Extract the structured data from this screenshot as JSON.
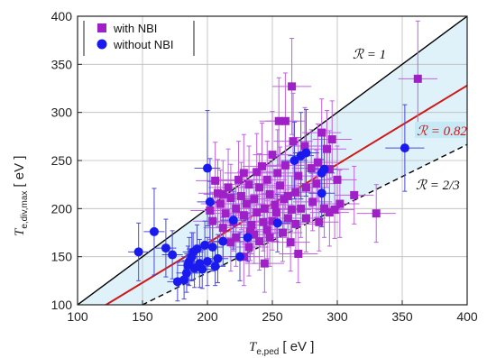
{
  "chart_data": {
    "type": "scatter",
    "xlabel": "T",
    "xlabel_sub": "e,ped",
    "xlabel_unit": "[ eV ]",
    "ylabel": "T",
    "ylabel_sub": "e,div,max",
    "ylabel_unit": "[ eV ]",
    "xlim": [
      100,
      400
    ],
    "ylim": [
      100,
      400
    ],
    "xticks": [
      100,
      150,
      200,
      250,
      300,
      350,
      400
    ],
    "yticks": [
      100,
      150,
      200,
      250,
      300,
      350,
      400
    ],
    "grid": true,
    "legend_position": "top-left",
    "colors": {
      "nbi": "#a020c8",
      "nonbi": "#1a1aee",
      "band": "#dff2fa",
      "ratio1": "#000000",
      "ratio082": "#d01818",
      "ratio23": "#000000",
      "nbi_err": "#c060e0",
      "nonbi_err": "#4a4ad8"
    },
    "lines": [
      {
        "label": "ℛ = 1",
        "slope": 1.0,
        "color": "ratio1",
        "style": "solid"
      },
      {
        "label": "ℛ = 0.82",
        "slope": 1.2195,
        "color": "ratio082",
        "style": "solid"
      },
      {
        "label": "ℛ = 2/3",
        "slope": 1.5,
        "color": "ratio23",
        "style": "dashed"
      }
    ],
    "series": [
      {
        "name": "with NBI",
        "marker": "square",
        "color": "nbi",
        "points": [
          [
            362,
            335,
            15,
            60
          ],
          [
            265,
            327,
            15,
            50
          ],
          [
            255,
            291,
            15,
            45
          ],
          [
            260,
            291,
            15,
            50
          ],
          [
            266,
            270,
            15,
            50
          ],
          [
            275,
            265,
            15,
            40
          ],
          [
            288,
            279,
            15,
            35
          ],
          [
            292,
            262,
            15,
            40
          ],
          [
            296,
            272,
            15,
            40
          ],
          [
            294,
            241,
            15,
            40
          ],
          [
            300,
            230,
            15,
            35
          ],
          [
            313,
            214,
            15,
            30
          ],
          [
            330,
            195,
            15,
            30
          ],
          [
            298,
            199,
            15,
            30
          ],
          [
            290,
            200,
            15,
            30
          ],
          [
            284,
            226,
            15,
            35
          ],
          [
            281,
            207,
            15,
            30
          ],
          [
            270,
            234,
            15,
            40
          ],
          [
            268,
            217,
            15,
            35
          ],
          [
            265,
            199,
            15,
            35
          ],
          [
            262,
            190,
            15,
            30
          ],
          [
            259,
            210,
            15,
            35
          ],
          [
            256,
            224,
            15,
            40
          ],
          [
            254,
            237,
            15,
            45
          ],
          [
            252,
            204,
            15,
            30
          ],
          [
            250,
            187,
            15,
            30
          ],
          [
            248,
            215,
            15,
            35
          ],
          [
            246,
            230,
            15,
            40
          ],
          [
            244,
            200,
            15,
            30
          ],
          [
            242,
            244,
            15,
            45
          ],
          [
            240,
            222,
            15,
            35
          ],
          [
            238,
            196,
            15,
            30
          ],
          [
            236,
            210,
            15,
            30
          ],
          [
            234,
            183,
            15,
            30
          ],
          [
            232,
            225,
            15,
            40
          ],
          [
            230,
            205,
            15,
            35
          ],
          [
            228,
            193,
            15,
            30
          ],
          [
            226,
            213,
            15,
            35
          ],
          [
            224,
            230,
            15,
            40
          ],
          [
            222,
            200,
            15,
            30
          ],
          [
            220,
            186,
            15,
            30
          ],
          [
            218,
            211,
            15,
            35
          ],
          [
            216,
            222,
            15,
            40
          ],
          [
            214,
            195,
            15,
            30
          ],
          [
            212,
            180,
            15,
            30
          ],
          [
            210,
            205,
            15,
            35
          ],
          [
            208,
            216,
            15,
            35
          ],
          [
            206,
            229,
            15,
            40
          ],
          [
            204,
            187,
            15,
            30
          ],
          [
            202,
            198,
            15,
            30
          ],
          [
            248,
            170,
            15,
            30
          ],
          [
            258,
            175,
            15,
            30
          ],
          [
            268,
            184,
            15,
            30
          ],
          [
            240,
            166,
            15,
            30
          ],
          [
            232,
            160,
            15,
            30
          ],
          [
            246,
            178,
            15,
            30
          ],
          [
            236,
            173,
            15,
            30
          ],
          [
            222,
            170,
            15,
            30
          ],
          [
            218,
            165,
            15,
            30
          ],
          [
            264,
            165,
            15,
            30
          ],
          [
            270,
            153,
            15,
            30
          ],
          [
            276,
            190,
            15,
            35
          ],
          [
            286,
            186,
            15,
            30
          ],
          [
            294,
            196,
            15,
            35
          ],
          [
            302,
            205,
            15,
            35
          ],
          [
            280,
            242,
            15,
            40
          ],
          [
            260,
            245,
            15,
            45
          ],
          [
            250,
            256,
            15,
            45
          ],
          [
            285,
            248,
            15,
            40
          ],
          [
            238,
            238,
            15,
            40
          ],
          [
            244,
            143,
            15,
            30
          ],
          [
            228,
            150,
            15,
            30
          ],
          [
            212,
            215,
            15,
            35
          ],
          [
            228,
            237,
            15,
            40
          ],
          [
            272,
            200,
            15,
            30
          ],
          [
            262,
            213,
            15,
            35
          ],
          [
            276,
            222,
            15,
            35
          ],
          [
            253,
            196,
            15,
            30
          ],
          [
            243,
            186,
            15,
            30
          ],
          [
            233,
            176,
            15,
            30
          ]
        ]
      },
      {
        "name": "without NBI",
        "marker": "circle",
        "color": "nonbi",
        "points": [
          [
            147,
            155,
            8,
            30
          ],
          [
            159,
            176,
            8,
            45
          ],
          [
            168,
            159,
            8,
            30
          ],
          [
            173,
            152,
            8,
            25
          ],
          [
            177,
            124,
            8,
            20
          ],
          [
            182,
            126,
            8,
            20
          ],
          [
            184,
            133,
            8,
            20
          ],
          [
            186,
            145,
            8,
            25
          ],
          [
            188,
            150,
            8,
            25
          ],
          [
            190,
            138,
            8,
            20
          ],
          [
            192,
            158,
            8,
            25
          ],
          [
            194,
            143,
            8,
            25
          ],
          [
            196,
            137,
            8,
            20
          ],
          [
            198,
            162,
            8,
            25
          ],
          [
            200,
            145,
            8,
            25
          ],
          [
            200,
            242,
            10,
            60
          ],
          [
            202,
            207,
            10,
            45
          ],
          [
            204,
            160,
            8,
            25
          ],
          [
            206,
            140,
            8,
            20
          ],
          [
            208,
            148,
            8,
            25
          ],
          [
            212,
            166,
            8,
            25
          ],
          [
            220,
            188,
            10,
            30
          ],
          [
            225,
            150,
            8,
            25
          ],
          [
            231,
            170,
            8,
            25
          ],
          [
            254,
            185,
            10,
            30
          ],
          [
            267,
            250,
            10,
            40
          ],
          [
            272,
            255,
            10,
            45
          ],
          [
            276,
            258,
            10,
            45
          ],
          [
            288,
            237,
            10,
            40
          ],
          [
            290,
            241,
            10,
            40
          ],
          [
            288,
            216,
            10,
            35
          ],
          [
            352,
            263,
            15,
            45
          ],
          [
            185,
            141,
            8,
            20
          ],
          [
            189,
            155,
            8,
            20
          ]
        ]
      }
    ]
  }
}
